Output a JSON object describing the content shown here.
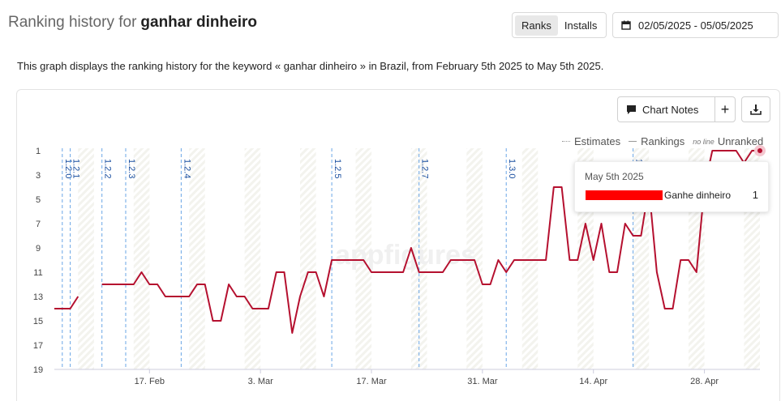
{
  "header": {
    "title_prefix": "Ranking history for",
    "keyword": "ganhar dinheiro",
    "tabs": [
      {
        "label": "Ranks",
        "active": true
      },
      {
        "label": "Installs",
        "active": false
      }
    ],
    "date_range": "02/05/2025 - 05/05/2025"
  },
  "description": "This graph displays the ranking history for the keyword « ganhar dinheiro » in Brazil, from February 5th 2025 to May 5th 2025.",
  "toolbar": {
    "chart_notes_label": "Chart Notes",
    "add_label": "+",
    "download_icon": "download-icon"
  },
  "legend": {
    "estimates": "Estimates",
    "rankings": "Rankings",
    "no_line": "no line",
    "unranked": "Unranked"
  },
  "tooltip": {
    "date": "May 5th 2025",
    "app": "Ganhe dinheiro",
    "rank": "1"
  },
  "watermark": "appfigures",
  "colors": {
    "line": "#b5102f",
    "annotation": "#6aa6e6",
    "annotation_text": "#1a4fa0"
  },
  "chart_data": {
    "type": "line",
    "x_start": "2025-02-05",
    "x_end": "2025-05-05",
    "x_ticks": [
      {
        "label": "17. Feb",
        "date": "2025-02-17"
      },
      {
        "label": "3. Mar",
        "date": "2025-03-03"
      },
      {
        "label": "17. Mar",
        "date": "2025-03-17"
      },
      {
        "label": "31. Mar",
        "date": "2025-03-31"
      },
      {
        "label": "14. Apr",
        "date": "2025-04-14"
      },
      {
        "label": "28. Apr",
        "date": "2025-04-28"
      }
    ],
    "y_ticks": [
      1,
      3,
      5,
      7,
      9,
      11,
      13,
      15,
      17,
      19
    ],
    "ylim": [
      1,
      19
    ],
    "y_reversed": true,
    "annotations": [
      {
        "label": "1.2.0",
        "date": "2025-02-06"
      },
      {
        "label": "1.2.1",
        "date": "2025-02-07"
      },
      {
        "label": "1.2.2",
        "date": "2025-02-11"
      },
      {
        "label": "1.2.3",
        "date": "2025-02-14"
      },
      {
        "label": "1.2.4",
        "date": "2025-02-21"
      },
      {
        "label": "1.2.5",
        "date": "2025-03-12"
      },
      {
        "label": "1.2.7",
        "date": "2025-03-23"
      },
      {
        "label": "1.3.0",
        "date": "2025-04-03"
      },
      {
        "label": "1",
        "date": "2025-04-19"
      }
    ],
    "series": [
      {
        "name": "Ganhe dinheiro",
        "segments": [
          [
            [
              "2025-02-05",
              14
            ],
            [
              "2025-02-06",
              14
            ],
            [
              "2025-02-07",
              14
            ],
            [
              "2025-02-08",
              13
            ]
          ],
          [
            [
              "2025-02-11",
              12
            ],
            [
              "2025-02-12",
              12
            ],
            [
              "2025-02-13",
              12
            ],
            [
              "2025-02-14",
              12
            ],
            [
              "2025-02-15",
              12
            ],
            [
              "2025-02-16",
              11
            ],
            [
              "2025-02-17",
              12
            ],
            [
              "2025-02-18",
              12
            ],
            [
              "2025-02-19",
              13
            ],
            [
              "2025-02-20",
              13
            ],
            [
              "2025-02-21",
              13
            ],
            [
              "2025-02-22",
              13
            ],
            [
              "2025-02-23",
              12
            ],
            [
              "2025-02-24",
              12
            ],
            [
              "2025-02-25",
              15
            ],
            [
              "2025-02-26",
              15
            ],
            [
              "2025-02-27",
              12
            ],
            [
              "2025-02-28",
              13
            ],
            [
              "2025-03-01",
              13
            ],
            [
              "2025-03-02",
              14
            ],
            [
              "2025-03-03",
              14
            ],
            [
              "2025-03-04",
              14
            ],
            [
              "2025-03-05",
              11
            ],
            [
              "2025-03-06",
              11
            ],
            [
              "2025-03-07",
              16
            ],
            [
              "2025-03-08",
              13
            ],
            [
              "2025-03-09",
              11
            ],
            [
              "2025-03-10",
              11
            ],
            [
              "2025-03-11",
              13
            ],
            [
              "2025-03-12",
              10
            ],
            [
              "2025-03-13",
              10
            ],
            [
              "2025-03-14",
              10
            ],
            [
              "2025-03-15",
              10
            ],
            [
              "2025-03-16",
              10
            ],
            [
              "2025-03-17",
              11
            ],
            [
              "2025-03-18",
              11
            ],
            [
              "2025-03-19",
              11
            ],
            [
              "2025-03-20",
              11
            ],
            [
              "2025-03-21",
              11
            ],
            [
              "2025-03-22",
              9
            ],
            [
              "2025-03-23",
              11
            ],
            [
              "2025-03-24",
              11
            ],
            [
              "2025-03-25",
              11
            ],
            [
              "2025-03-26",
              11
            ],
            [
              "2025-03-27",
              10
            ],
            [
              "2025-03-28",
              10
            ],
            [
              "2025-03-29",
              10
            ],
            [
              "2025-03-30",
              10
            ],
            [
              "2025-03-31",
              12
            ],
            [
              "2025-04-01",
              12
            ],
            [
              "2025-04-02",
              10
            ],
            [
              "2025-04-03",
              11
            ],
            [
              "2025-04-04",
              10
            ],
            [
              "2025-04-05",
              10
            ],
            [
              "2025-04-06",
              10
            ],
            [
              "2025-04-07",
              10
            ],
            [
              "2025-04-08",
              10
            ],
            [
              "2025-04-09",
              4
            ],
            [
              "2025-04-10",
              4
            ],
            [
              "2025-04-11",
              10
            ],
            [
              "2025-04-12",
              10
            ],
            [
              "2025-04-13",
              7
            ],
            [
              "2025-04-14",
              10
            ],
            [
              "2025-04-15",
              7
            ],
            [
              "2025-04-16",
              11
            ],
            [
              "2025-04-17",
              11
            ],
            [
              "2025-04-18",
              7
            ],
            [
              "2025-04-19",
              8
            ],
            [
              "2025-04-20",
              8
            ],
            [
              "2025-04-21",
              4
            ],
            [
              "2025-04-22",
              11
            ],
            [
              "2025-04-23",
              14
            ],
            [
              "2025-04-24",
              14
            ],
            [
              "2025-04-25",
              10
            ],
            [
              "2025-04-26",
              10
            ],
            [
              "2025-04-27",
              11
            ],
            [
              "2025-04-28",
              4
            ],
            [
              "2025-04-29",
              1
            ],
            [
              "2025-04-30",
              1
            ],
            [
              "2025-05-01",
              1
            ],
            [
              "2025-05-02",
              1
            ],
            [
              "2025-05-03",
              2
            ],
            [
              "2025-05-04",
              1
            ],
            [
              "2025-05-05",
              1
            ]
          ]
        ]
      }
    ]
  }
}
